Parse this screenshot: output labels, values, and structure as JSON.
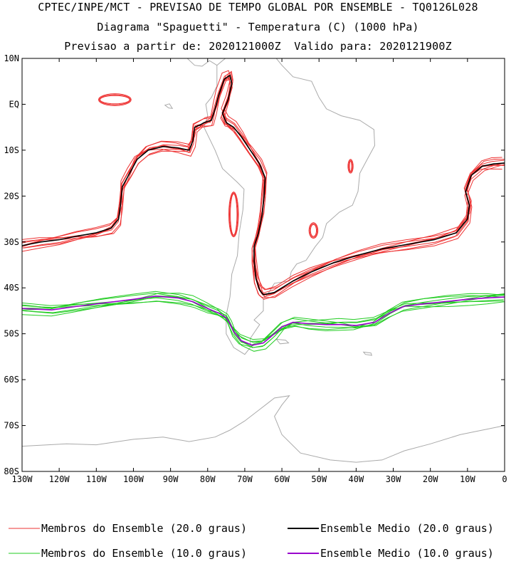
{
  "titles": {
    "line1": "CPTEC/INPE/MCT - PREVISAO DE TEMPO GLOBAL POR ENSEMBLE - TQ0126L028",
    "line2": "Diagrama \"Spaguetti\" - Temperatura (C) (1000 hPa)",
    "line3": "Previsao a partir de: 2020121000Z  Valido para: 2020121900Z"
  },
  "colors": {
    "member20": "#ee3333",
    "mean20": "#000000",
    "member10": "#22cc22",
    "mean10": "#9900cc",
    "coast": "#aaaaaa"
  },
  "legend": [
    {
      "label": "Membros do Ensemble (20.0 graus)",
      "color": "#ee3333",
      "kind": "member"
    },
    {
      "label": "Ensemble Medio (20.0 graus)",
      "color": "#000000",
      "kind": "mean"
    },
    {
      "label": "Membros do Ensemble (10.0 graus)",
      "color": "#22cc22",
      "kind": "member"
    },
    {
      "label": "Ensemble Medio (10.0 graus)",
      "color": "#9900cc",
      "kind": "mean"
    }
  ],
  "chart_data": {
    "type": "line",
    "title": "Diagrama \"Spaguetti\" - Temperatura (C) (1000 hPa)",
    "projection": "lon-lat",
    "xlim": [
      -130,
      0
    ],
    "ylim": [
      -80,
      10
    ],
    "grid": false,
    "legend_position": "bottom",
    "x_ticks": [
      {
        "v": -130,
        "label": "130W"
      },
      {
        "v": -120,
        "label": "120W"
      },
      {
        "v": -110,
        "label": "110W"
      },
      {
        "v": -100,
        "label": "100W"
      },
      {
        "v": -90,
        "label": "90W"
      },
      {
        "v": -80,
        "label": "80W"
      },
      {
        "v": -70,
        "label": "70W"
      },
      {
        "v": -60,
        "label": "60W"
      },
      {
        "v": -50,
        "label": "50W"
      },
      {
        "v": -40,
        "label": "40W"
      },
      {
        "v": -30,
        "label": "30W"
      },
      {
        "v": -20,
        "label": "20W"
      },
      {
        "v": -10,
        "label": "10W"
      },
      {
        "v": 0,
        "label": "0"
      }
    ],
    "y_ticks": [
      {
        "v": 10,
        "label": "10N"
      },
      {
        "v": 0,
        "label": "EQ"
      },
      {
        "v": -10,
        "label": "10S"
      },
      {
        "v": -20,
        "label": "20S"
      },
      {
        "v": -30,
        "label": "30S"
      },
      {
        "v": -40,
        "label": "40S"
      },
      {
        "v": -50,
        "label": "50S"
      },
      {
        "v": -60,
        "label": "60S"
      },
      {
        "v": -70,
        "label": "70S"
      },
      {
        "v": -80,
        "label": "80S"
      }
    ],
    "series": [
      {
        "name": "Ensemble Medio (20.0 graus)",
        "kind": "mean",
        "contour": 20,
        "points": [
          [
            -130,
            -30.8
          ],
          [
            -125,
            -30
          ],
          [
            -120,
            -29.5
          ],
          [
            -115,
            -28.7
          ],
          [
            -110,
            -28
          ],
          [
            -106,
            -27
          ],
          [
            -104,
            -25
          ],
          [
            -103.5,
            -22
          ],
          [
            -103,
            -18
          ],
          [
            -101,
            -15
          ],
          [
            -99,
            -12
          ],
          [
            -96,
            -10
          ],
          [
            -92,
            -9.2
          ],
          [
            -88,
            -9.5
          ],
          [
            -85,
            -10
          ],
          [
            -84,
            -8
          ],
          [
            -83.5,
            -5
          ],
          [
            -82,
            -4.5
          ],
          [
            -81,
            -4
          ],
          [
            -79,
            -3.5
          ],
          [
            -78,
            -1
          ],
          [
            -77,
            2
          ],
          [
            -75.5,
            5.5
          ],
          [
            -74,
            6.3
          ],
          [
            -73.5,
            4.5
          ],
          [
            -74.5,
            1
          ],
          [
            -76,
            -2
          ],
          [
            -75,
            -4
          ],
          [
            -73,
            -5
          ],
          [
            -71,
            -7
          ],
          [
            -68.5,
            -10
          ],
          [
            -66,
            -13
          ],
          [
            -64.5,
            -16
          ],
          [
            -64.8,
            -20
          ],
          [
            -65.3,
            -24
          ],
          [
            -66.3,
            -28
          ],
          [
            -67.5,
            -31
          ],
          [
            -67.5,
            -34
          ],
          [
            -67,
            -38
          ],
          [
            -66,
            -40.5
          ],
          [
            -65,
            -41.5
          ],
          [
            -62,
            -41
          ],
          [
            -57,
            -38.5
          ],
          [
            -52,
            -36.5
          ],
          [
            -46,
            -34.5
          ],
          [
            -40,
            -33
          ],
          [
            -33,
            -31.5
          ],
          [
            -26,
            -30.5
          ],
          [
            -19,
            -29.5
          ],
          [
            -13,
            -28
          ],
          [
            -10,
            -25
          ],
          [
            -9.5,
            -22
          ],
          [
            -10.5,
            -19
          ],
          [
            -9,
            -15.5
          ],
          [
            -6,
            -13.5
          ],
          [
            -3,
            -13
          ],
          [
            0,
            -12.8
          ]
        ]
      },
      {
        "name": "Ensemble Medio (10.0 graus)",
        "kind": "mean",
        "contour": 10,
        "points": [
          [
            -130,
            -44.5
          ],
          [
            -122,
            -44.8
          ],
          [
            -115,
            -44
          ],
          [
            -108,
            -43.3
          ],
          [
            -100,
            -42.5
          ],
          [
            -94,
            -41.8
          ],
          [
            -88,
            -42.2
          ],
          [
            -84,
            -43
          ],
          [
            -80,
            -44.5
          ],
          [
            -77,
            -45.5
          ],
          [
            -75,
            -46.5
          ],
          [
            -74,
            -47.8
          ],
          [
            -73,
            -49.5
          ],
          [
            -71,
            -51.5
          ],
          [
            -68,
            -52.5
          ],
          [
            -65,
            -52
          ],
          [
            -62,
            -50
          ],
          [
            -60,
            -48.5
          ],
          [
            -57,
            -47.5
          ],
          [
            -53,
            -47.8
          ],
          [
            -48,
            -48
          ],
          [
            -44,
            -48
          ],
          [
            -40,
            -48.2
          ],
          [
            -35,
            -47.5
          ],
          [
            -31,
            -45.5
          ],
          [
            -27,
            -44
          ],
          [
            -22,
            -43.5
          ],
          [
            -16,
            -43
          ],
          [
            -10,
            -42.5
          ],
          [
            -5,
            -42.2
          ],
          [
            0,
            -42
          ]
        ]
      }
    ],
    "ensemble_members": {
      "contour_20_count": 8,
      "contour_10_count": 8
    }
  }
}
